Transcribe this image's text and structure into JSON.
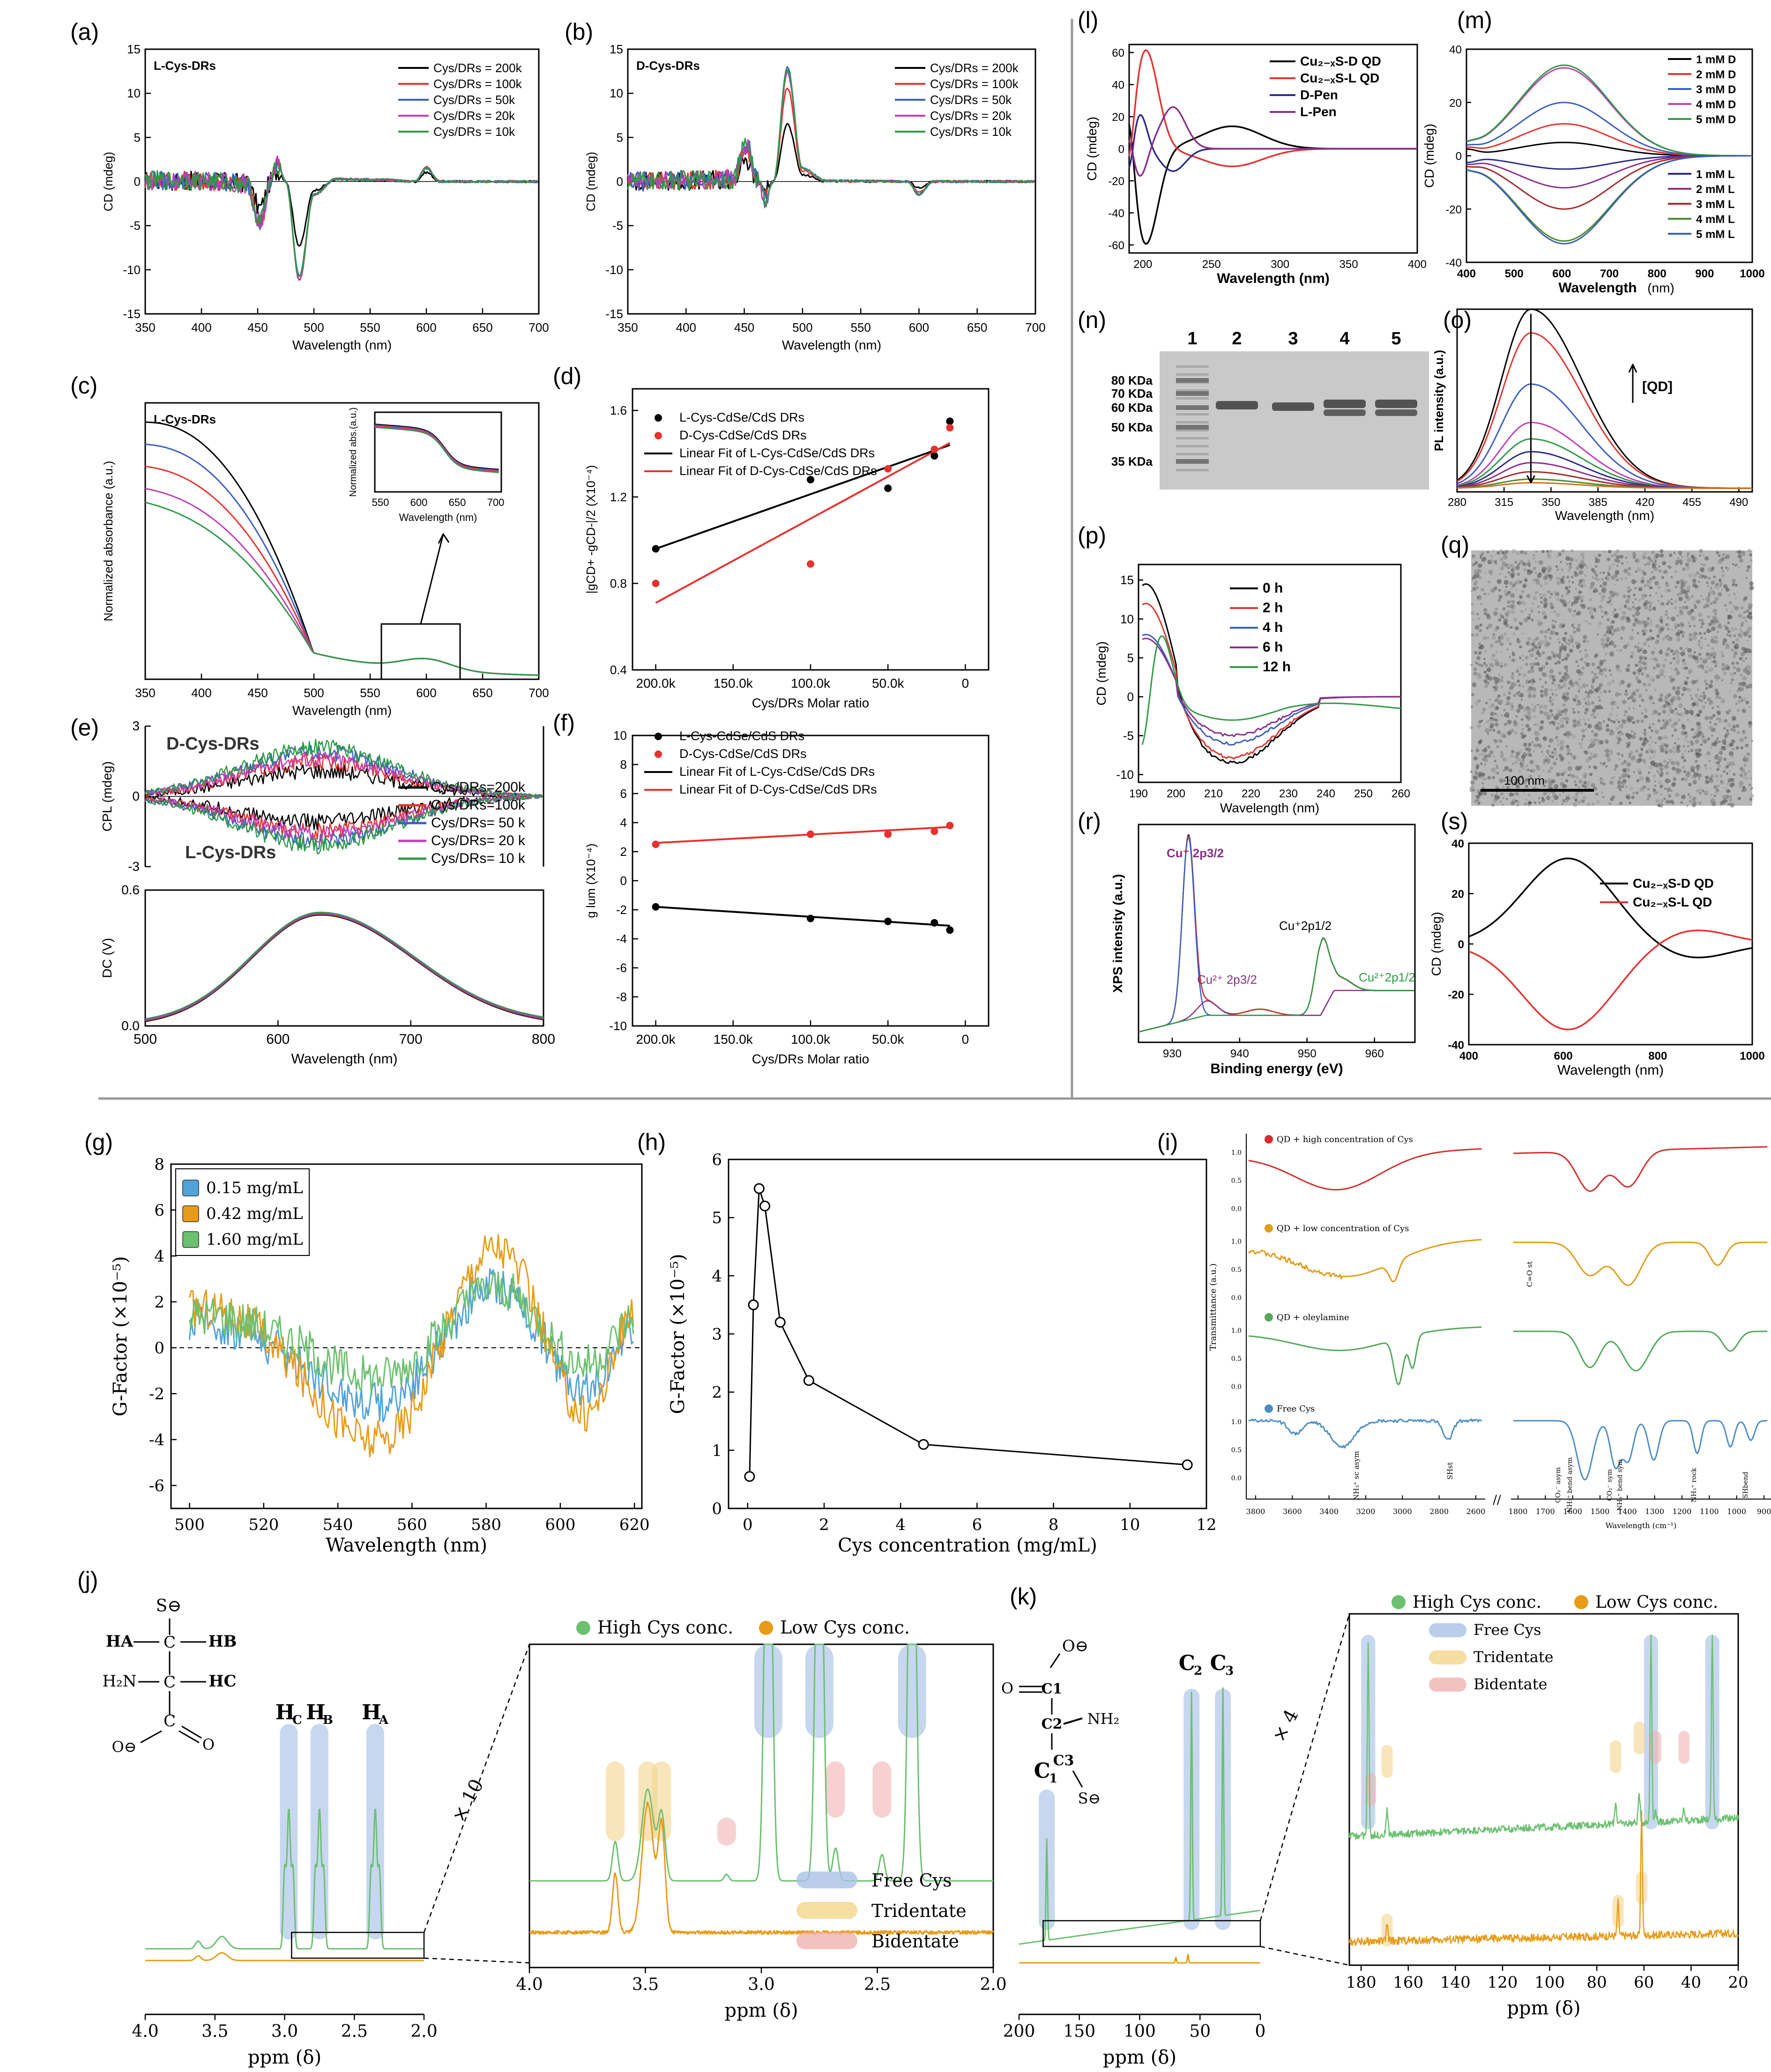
{
  "panel_labels": [
    "(a)",
    "(b)",
    "(c)",
    "(d)",
    "(e)",
    "(f)",
    "(g)",
    "(h)",
    "(i)",
    "(j)",
    "(k)",
    "(l)",
    "(m)",
    "(n)",
    "(o)",
    "(p)",
    "(q)",
    "(r)",
    "(s)"
  ],
  "colors": {
    "black": "#000000",
    "red": "#e4332f",
    "blue": "#3a5fbf",
    "magenta": "#c23fb5",
    "green": "#2e9a45",
    "navy": "#2b2b8c",
    "purple": "#8a2f8a",
    "orange": "#e89b17",
    "lightgreen": "#6cc070",
    "lightblue": "#4fa3d9",
    "spec_red": "#d82c2c",
    "spec_orange": "#e39b1a",
    "spec_green": "#53a85a",
    "spec_blue": "#4e8ec6"
  },
  "chart_data": [
    {
      "id": "a",
      "type": "line",
      "title": "L-Cys-DRs",
      "xlabel": "Wavelength (nm)",
      "ylabel": "CD (mdeg)",
      "xlim": [
        350,
        700
      ],
      "ylim": [
        -15,
        15
      ],
      "xticks": [
        "350",
        "400",
        "450",
        "500",
        "550",
        "600",
        "650",
        "700"
      ],
      "yticks": [
        "15",
        "10",
        "5",
        "0",
        "-5",
        "-10",
        "-15"
      ],
      "series": [
        {
          "name": "Cys/DRs = 200k",
          "color": "#000000",
          "amp": 0.65
        },
        {
          "name": "Cys/DRs = 100k",
          "color": "#e4332f",
          "amp": 1.0
        },
        {
          "name": "Cys/DRs = 50k",
          "color": "#3a5fbf",
          "amp": 0.95
        },
        {
          "name": "Cys/DRs = 20k",
          "color": "#c23fb5",
          "amp": 1.0
        },
        {
          "name": "Cys/DRs = 10k",
          "color": "#2e9a45",
          "amp": 0.97
        }
      ],
      "shape": [
        [
          350,
          0.1
        ],
        [
          400,
          0.1
        ],
        [
          440,
          -0.2
        ],
        [
          452,
          -4.6
        ],
        [
          462,
          0
        ],
        [
          468,
          2.0
        ],
        [
          475,
          0
        ],
        [
          487,
          -11.2
        ],
        [
          500,
          -1.5
        ],
        [
          520,
          0.3
        ],
        [
          560,
          0.2
        ],
        [
          590,
          0
        ],
        [
          600,
          1.6
        ],
        [
          612,
          0
        ],
        [
          650,
          0
        ],
        [
          700,
          0
        ]
      ]
    },
    {
      "id": "b",
      "type": "line",
      "title": "D-Cys-DRs",
      "xlabel": "Wavelength (nm)",
      "ylabel": "CD (mdeg)",
      "xlim": [
        350,
        700
      ],
      "ylim": [
        -15,
        15
      ],
      "xticks": [
        "350",
        "400",
        "450",
        "500",
        "550",
        "600",
        "650",
        "700"
      ],
      "yticks": [
        "15",
        "10",
        "5",
        "0",
        "-5",
        "-10",
        "-15"
      ],
      "series": [
        {
          "name": "Cys/DRs = 200k",
          "color": "#000000",
          "amp": 0.5
        },
        {
          "name": "Cys/DRs = 100k",
          "color": "#e4332f",
          "amp": 0.82
        },
        {
          "name": "Cys/DRs = 50k",
          "color": "#3a5fbf",
          "amp": 1.0
        },
        {
          "name": "Cys/DRs = 20k",
          "color": "#c23fb5",
          "amp": 0.95
        },
        {
          "name": "Cys/DRs = 10k",
          "color": "#2e9a45",
          "amp": 0.98
        }
      ],
      "shape": [
        [
          350,
          0
        ],
        [
          440,
          0.3
        ],
        [
          452,
          4.3
        ],
        [
          462,
          0
        ],
        [
          468,
          -2.0
        ],
        [
          475,
          0
        ],
        [
          487,
          13.0
        ],
        [
          500,
          1.5
        ],
        [
          520,
          0.1
        ],
        [
          590,
          0
        ],
        [
          600,
          -1.5
        ],
        [
          612,
          0
        ],
        [
          650,
          0
        ],
        [
          700,
          0
        ]
      ]
    },
    {
      "id": "c",
      "type": "line",
      "title": "L-Cys-DRs",
      "xlabel": "Wavelength (nm)",
      "ylabel": "Normalized absorbance (a.u.)",
      "xlim": [
        350,
        700
      ],
      "xticks": [
        "350",
        "400",
        "450",
        "500",
        "550",
        "600",
        "650",
        "700"
      ],
      "series": [
        {
          "color": "#000000",
          "start": 0.93
        },
        {
          "color": "#3a5fbf",
          "start": 0.85
        },
        {
          "color": "#e4332f",
          "start": 0.77
        },
        {
          "color": "#c23fb5",
          "start": 0.69
        },
        {
          "color": "#2e9a45",
          "start": 0.64
        }
      ],
      "inset": {
        "ylabel": "Normalized abs.(a.u.)",
        "xlabel": "Wavelength (nm)",
        "xticks": [
          "550",
          "600",
          "650",
          "700"
        ]
      }
    },
    {
      "id": "d",
      "type": "scatter",
      "xlabel": "Cys/DRs Molar ratio",
      "ylabel": "|gCD+ -gCD-|/2 (X10⁻⁴)",
      "xlim": [
        200,
        0
      ],
      "ylim": [
        0.4,
        1.7
      ],
      "xticks": [
        "200.0k",
        "150.0k",
        "100.0k",
        "50.0k",
        "0"
      ],
      "yticks": [
        "0.4",
        "0.8",
        "1.2",
        "1.6"
      ],
      "series": [
        {
          "name": "L-Cys-CdSe/CdS DRs",
          "color": "#000000",
          "x": [
            200,
            100,
            50,
            20,
            10
          ],
          "y": [
            0.96,
            1.28,
            1.24,
            1.39,
            1.55
          ]
        },
        {
          "name": "D-Cys-CdSe/CdS DRs",
          "color": "#e4332f",
          "x": [
            200,
            100,
            50,
            20,
            10
          ],
          "y": [
            0.8,
            0.89,
            1.33,
            1.42,
            1.52
          ]
        }
      ],
      "fits": [
        {
          "name": "Linear Fit of L-Cys-CdSe/CdS DRs",
          "color": "#000000",
          "y0": 0.96,
          "y1": 1.44
        },
        {
          "name": "Linear Fit of D-Cys-CdSe/CdS DRs",
          "color": "#e4332f",
          "y0": 0.71,
          "y1": 1.45
        }
      ]
    },
    {
      "id": "e",
      "type": "line",
      "xlabel": "Wavelength (nm)",
      "ylabel_top": "CPL (mdeg)",
      "ylabel_bottom": "DC (V)",
      "xlim": [
        500,
        800
      ],
      "xticks": [
        "500",
        "600",
        "700",
        "800"
      ],
      "cpl_yticks": [
        "3",
        "0",
        "-3"
      ],
      "dc_yticks": [
        "0.6",
        "0.0"
      ],
      "label_top": "D-Cys-DRs",
      "label_bottom": "L-Cys-DRs",
      "series": [
        {
          "name": "Cys/DRs=200k",
          "color": "#000000",
          "amp": 1.1
        },
        {
          "name": "Cys/DRs=100k",
          "color": "#e4332f",
          "amp": 1.5
        },
        {
          "name": "Cys/DRs= 50 k",
          "color": "#3a5fbf",
          "amp": 1.9
        },
        {
          "name": "Cys/DRs= 20 k",
          "color": "#c23fb5",
          "amp": 1.6
        },
        {
          "name": "Cys/DRs= 10 k",
          "color": "#2e9a45",
          "amp": 2.1
        }
      ],
      "dc_peak": 0.49
    },
    {
      "id": "f",
      "type": "scatter",
      "xlabel": "Cys/DRs Molar ratio",
      "ylabel": "g lum (X10⁻⁴)",
      "xlim": [
        200,
        0
      ],
      "ylim": [
        -10,
        10
      ],
      "xticks": [
        "200.0k",
        "150.0k",
        "100.0k",
        "50.0k",
        "0"
      ],
      "yticks": [
        "10",
        "8",
        "6",
        "4",
        "2",
        "0",
        "-2",
        "-4",
        "-6",
        "-8",
        "-10"
      ],
      "series": [
        {
          "name": "L-Cys-CdSe/CdS DRs",
          "color": "#000000",
          "x": [
            200,
            100,
            50,
            20,
            10
          ],
          "y": [
            -1.8,
            -2.6,
            -2.8,
            -2.9,
            -3.4
          ]
        },
        {
          "name": "D-Cys-CdSe/CdS DRs",
          "color": "#e4332f",
          "x": [
            200,
            100,
            50,
            20,
            10
          ],
          "y": [
            2.5,
            3.2,
            3.2,
            3.4,
            3.8
          ]
        }
      ],
      "fits": [
        {
          "name": "Linear Fit of L-Cys-CdSe/CdS DRs",
          "color": "#000000",
          "y0": -1.8,
          "y1": -3.1
        },
        {
          "name": "Linear Fit of D-Cys-CdSe/CdS DRs",
          "color": "#e4332f",
          "y0": 2.6,
          "y1": 3.7
        }
      ]
    },
    {
      "id": "g",
      "type": "line",
      "xlabel": "Wavelength (nm)",
      "ylabel": "G-Factor (×10⁻⁵)",
      "xlim": [
        495,
        622
      ],
      "ylim": [
        -7,
        8
      ],
      "xticks": [
        "500",
        "520",
        "540",
        "560",
        "580",
        "600",
        "620"
      ],
      "yticks": [
        "8",
        "6",
        "4",
        "2",
        "0",
        "-2",
        "-4",
        "-6"
      ],
      "series": [
        {
          "name": "0.15 mg/mL",
          "color": "#4fa3d9",
          "amp": 0.7
        },
        {
          "name": "0.42 mg/mL",
          "color": "#e89b17",
          "amp": 1.2
        },
        {
          "name": "1.60 mg/mL",
          "color": "#6cc070",
          "amp": 0.55
        }
      ]
    },
    {
      "id": "h",
      "type": "line",
      "xlabel": "Cys concentration (mg/mL)",
      "ylabel": "G-Factor (×10⁻⁵)",
      "xlim": [
        -0.5,
        12
      ],
      "ylim": [
        0,
        6
      ],
      "xticks": [
        "0",
        "2",
        "4",
        "6",
        "8",
        "10",
        "12"
      ],
      "yticks": [
        "0",
        "1",
        "2",
        "3",
        "4",
        "5",
        "6"
      ],
      "x": [
        0.05,
        0.15,
        0.3,
        0.45,
        0.85,
        1.6,
        4.6,
        11.5
      ],
      "y": [
        0.55,
        3.5,
        5.5,
        5.2,
        3.2,
        2.2,
        1.1,
        0.75
      ]
    },
    {
      "id": "i",
      "type": "line",
      "xlabel": "Wavelength (cm⁻¹)",
      "ylabel": "Transmittance (a.u.)",
      "xticks_left": [
        "3800",
        "3600",
        "3400",
        "3200",
        "3000",
        "2800",
        "2600"
      ],
      "xticks_right": [
        "1800",
        "1700",
        "1600",
        "1500",
        "1400",
        "1300",
        "1200",
        "1100",
        "1000",
        "900"
      ],
      "series": [
        {
          "name": "QD + high concentration of Cys",
          "color": "#d82c2c"
        },
        {
          "name": "QD + low concentration of Cys",
          "color": "#e39b1a"
        },
        {
          "name": "QD + oleylamine",
          "color": "#53a85a"
        },
        {
          "name": "Free Cys",
          "color": "#4e8ec6"
        }
      ],
      "annotations": [
        "NH₃⁺ sc asym",
        "SHst",
        "C=O st",
        "CO₂⁻ asym",
        "NH₃⁺ bend asym",
        "CO₂⁻ sym",
        "NH₃⁺ bend sym",
        "NH₃⁺ rock",
        "SHbend"
      ],
      "yticks": [
        "1.0",
        "0.5",
        "0.0"
      ]
    },
    {
      "id": "l",
      "type": "line",
      "xlabel": "Wavelength (nm)",
      "ylabel": "CD (mdeg)",
      "xlim": [
        190,
        400
      ],
      "ylim": [
        -65,
        65
      ],
      "xticks": [
        "200",
        "250",
        "300",
        "350",
        "400"
      ],
      "yticks": [
        "60",
        "40",
        "20",
        "0",
        "-20",
        "-40",
        "-60"
      ],
      "series": [
        {
          "name": "Cu₂₋ₓS-D QD",
          "color": "#000000"
        },
        {
          "name": "Cu₂₋ₓS-L QD",
          "color": "#e4332f"
        },
        {
          "name": "D-Pen",
          "color": "#2b2b8c"
        },
        {
          "name": "L-Pen",
          "color": "#8a2f8a"
        }
      ]
    },
    {
      "id": "m",
      "type": "line",
      "xlabel": "Wavelength",
      "xunit": "(nm)",
      "ylabel": "CD (mdeg)",
      "xlim": [
        400,
        1000
      ],
      "ylim": [
        -40,
        40
      ],
      "xticks": [
        "400",
        "500",
        "600",
        "700",
        "800",
        "900",
        "1000"
      ],
      "yticks": [
        "40",
        "20",
        "0",
        "-20",
        "-40"
      ],
      "series": [
        {
          "name": "1 mM D",
          "color": "#000000",
          "amp": 5
        },
        {
          "name": "2 mM D",
          "color": "#e4332f",
          "amp": 12
        },
        {
          "name": "3 mM D",
          "color": "#3a5fbf",
          "amp": 20
        },
        {
          "name": "4 mM D",
          "color": "#c23fb5",
          "amp": 33
        },
        {
          "name": "5 mM D",
          "color": "#2e9a45",
          "amp": 34
        },
        {
          "name": "1 mM L",
          "color": "#2b2b8c",
          "amp": -5
        },
        {
          "name": "2 mM L",
          "color": "#8a2f8a",
          "amp": -12
        },
        {
          "name": "3 mM L",
          "color": "#a52a2a",
          "amp": -20
        },
        {
          "name": "4 mM L",
          "color": "#4a8a2a",
          "amp": -32
        },
        {
          "name": "5 mM L",
          "color": "#3a5fbf",
          "amp": -33
        }
      ]
    },
    {
      "id": "n",
      "type": "gel",
      "lanes": [
        "1",
        "2",
        "3",
        "4",
        "5"
      ],
      "markers": [
        "80 KDa",
        "70 KDa",
        "60 KDa",
        "50 KDa",
        "35 KDa"
      ]
    },
    {
      "id": "o",
      "type": "line",
      "xlabel": "Wavelength (nm)",
      "ylabel": "PL intensity (a.u.)",
      "xlim": [
        280,
        500
      ],
      "xticks": [
        "280",
        "315",
        "350",
        "385",
        "420",
        "455",
        "490"
      ],
      "arrow_label": "[QD]",
      "peaks": [
        0.98,
        0.85,
        0.57,
        0.36,
        0.27,
        0.2,
        0.14,
        0.09,
        0.05,
        0.03
      ],
      "colors": [
        "#000000",
        "#e4332f",
        "#3a5fbf",
        "#c23fb5",
        "#2e9a45",
        "#2b2b8c",
        "#8a2f8a",
        "#a52a2a",
        "#4a8a2a",
        "#d07020"
      ]
    },
    {
      "id": "p",
      "type": "line",
      "xlabel": "Wavelength (nm)",
      "ylabel": "CD (mdeg)",
      "xlim": [
        190,
        260
      ],
      "ylim": [
        -11,
        17
      ],
      "xticks": [
        "190",
        "200",
        "210",
        "220",
        "230",
        "240",
        "250",
        "260"
      ],
      "yticks": [
        "15",
        "10",
        "5",
        "0",
        "-5",
        "-10"
      ],
      "series": [
        {
          "name": "0 h",
          "color": "#000000",
          "amp": 14.5,
          "neg": -8.5
        },
        {
          "name": "2 h",
          "color": "#e4332f",
          "amp": 12,
          "neg": -7.8
        },
        {
          "name": "4 h",
          "color": "#3a5fbf",
          "amp": 8,
          "neg": -6
        },
        {
          "name": "6 h",
          "color": "#8a2f8a",
          "amp": 7.5,
          "neg": -5
        },
        {
          "name": "12 h",
          "color": "#2e9a45",
          "amp": -5,
          "neg": -3
        }
      ]
    },
    {
      "id": "q",
      "type": "image",
      "scale_label": "100 nm"
    },
    {
      "id": "r",
      "type": "line",
      "xlabel": "Binding energy (eV)",
      "ylabel": "XPS intensity (a.u.)",
      "xlim": [
        925,
        966
      ],
      "xticks": [
        "930",
        "940",
        "950",
        "960"
      ],
      "peak_labels": [
        "Cu⁺ 2p3/2",
        "Cu²⁺ 2p3/2",
        "Cu⁺2p1/2",
        "Cu²⁺2p1/2"
      ]
    },
    {
      "id": "s",
      "type": "line",
      "xlabel": "Wavelength (nm)",
      "ylabel": "CD (mdeg)",
      "xlim": [
        400,
        1000
      ],
      "ylim": [
        -40,
        40
      ],
      "xticks": [
        "400",
        "600",
        "800",
        "1000"
      ],
      "yticks": [
        "40",
        "20",
        "0",
        "-20",
        "-40"
      ],
      "series": [
        {
          "name": "Cu₂₋ₓS-D QD",
          "color": "#000000"
        },
        {
          "name": "Cu₂₋ₓS-L QD",
          "color": "#e4332f"
        }
      ]
    },
    {
      "id": "j",
      "type": "nmr",
      "xlabel": "ppm (δ)",
      "xlabel_zoom": "ppm (δ)",
      "xticks": [
        "4.0",
        "3.5",
        "3.0",
        "2.5",
        "2.0"
      ],
      "zoom_xticks": [
        "4.0",
        "3.5",
        "3.0",
        "2.5",
        "2.0"
      ],
      "peak_labels": [
        "HC",
        "HB",
        "HA"
      ],
      "molecule": {
        "atoms": [
          "S⊖",
          "HA",
          "C",
          "HB",
          "H₂N",
          "C",
          "HC",
          "C",
          "O",
          "O⊖"
        ]
      },
      "zoom_factor": "× 10",
      "legend": [
        "High Cys conc.",
        "Low Cys conc."
      ],
      "overlay_legend": [
        "Free Cys",
        "Tridentate",
        "Bidentate"
      ]
    },
    {
      "id": "k",
      "type": "nmr",
      "xlabel": "ppm (δ)",
      "xlabel_zoom": "ppm (δ)",
      "xticks": [
        "200",
        "150",
        "100",
        "50",
        "0"
      ],
      "zoom_xticks": [
        "180",
        "160",
        "140",
        "120",
        "100",
        "80",
        "60",
        "40",
        "20"
      ],
      "peak_labels": [
        "C1",
        "C2",
        "C3"
      ],
      "molecule": {
        "atoms": [
          "O⊖",
          "O",
          "C1",
          "C2",
          "NH₂",
          "C3",
          "S⊖"
        ]
      },
      "zoom_factor": "× 4",
      "legend": [
        "High Cys conc.",
        "Low Cys conc."
      ],
      "overlay_legend": [
        "Free Cys",
        "Tridentate",
        "Bidentate"
      ]
    }
  ]
}
